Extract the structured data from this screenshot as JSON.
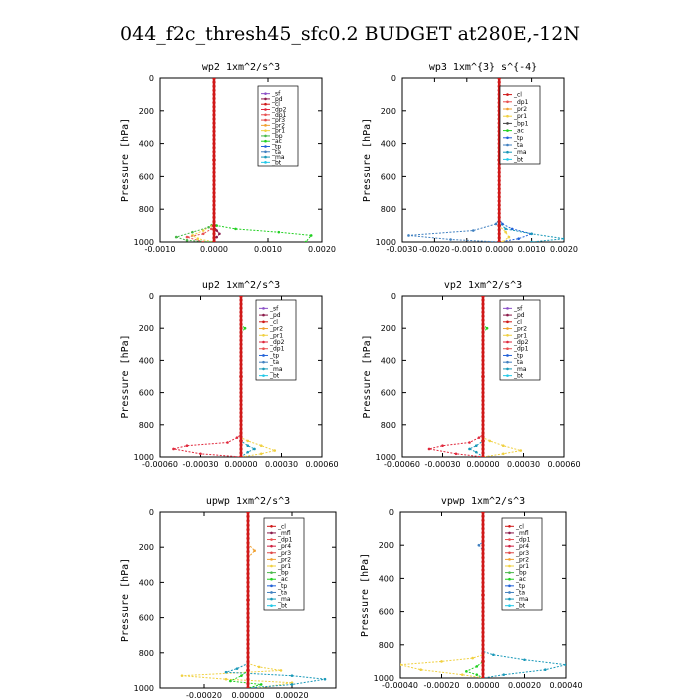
{
  "title": "044_f2c_thresh45_sfc0.2  BUDGET at280E,-12N",
  "colors": {
    "_sf": "#8a4fc7",
    "_pd": "#8b1a4a",
    "_cl": "#d01818",
    "_dp2": "#e0283c",
    "_dp1": "#e85050",
    "_mfl": "#8b1a4a",
    "_pr4": "#d02040",
    "_pr3": "#e04848",
    "_pr2": "#f0a030",
    "_pr1": "#f0d040",
    "_bp": "#48b848",
    "_ac": "#20d020",
    "_tp": "#2060d8",
    "_ta": "#4080c0",
    "_ma": "#1898b8",
    "_bt": "#20c8e8"
  },
  "chart_data": [
    {
      "type": "line",
      "title": "wp2  1xm^2/s^3",
      "ylabel": "Pressure [hPa]",
      "xlim": [
        -0.001,
        0.002
      ],
      "ylim": [
        1000,
        0
      ],
      "xticks": [
        "-0.0010",
        "0.0000",
        "0.0010",
        "0.0020"
      ],
      "xtick_values": [
        -0.001,
        0,
        0.001,
        0.002
      ],
      "yticks": [
        "0",
        "200",
        "400",
        "600",
        "800",
        "1000"
      ],
      "legend": [
        "_sf",
        "_pd",
        "_cl",
        "_dp2",
        "_dp1",
        "_pr3",
        "_pr2",
        "_pr1",
        "_bp",
        "_ac",
        "_tp",
        "_ta",
        "_ma",
        "_bt"
      ],
      "series": [
        {
          "key": "_ac",
          "x": [
            0,
            0,
            5e-05,
            0.0004,
            0.0012,
            0.0018,
            0.0017
          ],
          "y": [
            0,
            880,
            900,
            920,
            940,
            960,
            1000
          ]
        },
        {
          "key": "_pr1",
          "x": [
            0,
            0,
            -5e-05,
            -0.0002,
            -0.0004,
            -0.0003,
            0
          ],
          "y": [
            0,
            880,
            900,
            930,
            960,
            980,
            1000
          ]
        },
        {
          "key": "_bp",
          "x": [
            0,
            0,
            -0.0001,
            -0.0004,
            -0.0007,
            -0.0005,
            0
          ],
          "y": [
            0,
            880,
            910,
            940,
            970,
            990,
            1000
          ]
        },
        {
          "key": "_dp1",
          "x": [
            0,
            0,
            -5e-05,
            -0.0002,
            -0.0005,
            -0.0002
          ],
          "y": [
            0,
            880,
            920,
            950,
            970,
            1000
          ]
        },
        {
          "key": "_pd",
          "x": [
            0,
            0,
            5e-05,
            0.0001,
            5e-05,
            0
          ],
          "y": [
            0,
            900,
            930,
            950,
            970,
            1000
          ]
        },
        {
          "key": "_cl",
          "x": [
            0,
            0,
            0,
            0
          ],
          "y": [
            0,
            500,
            900,
            1000
          ]
        }
      ]
    },
    {
      "type": "line",
      "title": "wp3  1xm^{3} s^{-4}",
      "ylabel": "Pressure [hPa]",
      "xlim": [
        -0.003,
        0.002
      ],
      "ylim": [
        1000,
        0
      ],
      "xticks": [
        "-0.0030",
        "-0.0020",
        "-0.0010",
        "0.0000",
        "0.0010",
        "0.0020"
      ],
      "xtick_values": [
        -0.003,
        -0.002,
        -0.001,
        0,
        0.001,
        0.002
      ],
      "yticks": [
        "0",
        "200",
        "400",
        "600",
        "800",
        "1000"
      ],
      "legend": [
        "_cl",
        "_dp1",
        "_pr2",
        "_pr1",
        "_bp1",
        "_ac",
        "_tp",
        "_ta",
        "_ma",
        "_bt"
      ],
      "series": [
        {
          "key": "_tp",
          "x": [
            0,
            0,
            0.0001,
            0.0004,
            0.001,
            0.0006,
            0
          ],
          "y": [
            0,
            860,
            890,
            920,
            950,
            980,
            1000
          ]
        },
        {
          "key": "_ta",
          "x": [
            0,
            0,
            -0.0001,
            -0.0008,
            -0.0028,
            -0.0015,
            0
          ],
          "y": [
            0,
            860,
            890,
            930,
            960,
            985,
            1000
          ]
        },
        {
          "key": "_ma",
          "x": [
            0,
            0,
            0.0002,
            0.001,
            0.002,
            0.001
          ],
          "y": [
            0,
            880,
            920,
            950,
            980,
            1000
          ]
        },
        {
          "key": "_pr1",
          "x": [
            0,
            0,
            0.0002,
            0.0003,
            0.0001
          ],
          "y": [
            0,
            900,
            940,
            970,
            1000
          ]
        },
        {
          "key": "_cl",
          "x": [
            0,
            0,
            0,
            0
          ],
          "y": [
            0,
            500,
            900,
            1000
          ]
        }
      ]
    },
    {
      "type": "line",
      "title": "up2  1xm^2/s^3",
      "ylabel": "Pressure [hPa]",
      "xlim": [
        -0.0006,
        0.0006
      ],
      "ylim": [
        1000,
        0
      ],
      "xticks": [
        "-0.00060",
        "-0.00030",
        "0.00000",
        "0.00030",
        "0.00060"
      ],
      "xtick_values": [
        -0.0006,
        -0.0003,
        0,
        0.0003,
        0.0006
      ],
      "yticks": [
        "0",
        "200",
        "400",
        "600",
        "800",
        "1000"
      ],
      "legend": [
        "_sf",
        "_pd",
        "_cl",
        "_pr2",
        "_pr1",
        "_dp2",
        "_dp1",
        "_tp",
        "_ta",
        "_ma",
        "_bt"
      ],
      "series": [
        {
          "key": "_dp2",
          "x": [
            0,
            0,
            -3e-05,
            -0.0001,
            -0.0004,
            -0.0005,
            -0.0003,
            0
          ],
          "y": [
            0,
            860,
            880,
            910,
            930,
            950,
            980,
            1000
          ]
        },
        {
          "key": "_pr1",
          "x": [
            0,
            0,
            5e-05,
            0.00015,
            0.00025,
            0.00015,
            0
          ],
          "y": [
            0,
            880,
            900,
            930,
            960,
            980,
            1000
          ]
        },
        {
          "key": "_ma",
          "x": [
            0,
            0,
            5e-05,
            0.0001,
            5e-05,
            0
          ],
          "y": [
            0,
            900,
            930,
            950,
            970,
            1000
          ]
        },
        {
          "key": "_ac",
          "x": [
            0,
            0,
            3e-05,
            0,
            0
          ],
          "y": [
            0,
            180,
            200,
            230,
            1000
          ]
        },
        {
          "key": "_cl",
          "x": [
            0,
            0,
            0,
            0
          ],
          "y": [
            0,
            500,
            900,
            1000
          ]
        }
      ]
    },
    {
      "type": "line",
      "title": "vp2  1xm^2/s^3",
      "ylabel": "Pressure [hPa]",
      "xlim": [
        -0.0006,
        0.0006
      ],
      "ylim": [
        1000,
        0
      ],
      "xticks": [
        "-0.00060",
        "-0.00030",
        "0.00000",
        "0.00030",
        "0.00060"
      ],
      "xtick_values": [
        -0.0006,
        -0.0003,
        0,
        0.0003,
        0.0006
      ],
      "yticks": [
        "0",
        "200",
        "400",
        "600",
        "800",
        "1000"
      ],
      "legend": [
        "_sf",
        "_pd",
        "_cl",
        "_pr2",
        "_pr1",
        "_dp2",
        "_dp1",
        "_tp",
        "_ta",
        "_ma",
        "_bt"
      ],
      "series": [
        {
          "key": "_dp2",
          "x": [
            0,
            0,
            -3e-05,
            -0.0001,
            -0.0003,
            -0.0004,
            -0.0002,
            0
          ],
          "y": [
            0,
            860,
            880,
            910,
            930,
            950,
            980,
            1000
          ]
        },
        {
          "key": "_pr1",
          "x": [
            0,
            0,
            5e-05,
            0.00015,
            0.00028,
            0.00015,
            0
          ],
          "y": [
            0,
            880,
            900,
            930,
            960,
            980,
            1000
          ]
        },
        {
          "key": "_ma",
          "x": [
            0,
            0,
            -5e-05,
            -0.0001,
            -5e-05,
            0
          ],
          "y": [
            0,
            900,
            930,
            950,
            970,
            1000
          ]
        },
        {
          "key": "_ac",
          "x": [
            0,
            0,
            3e-05,
            0,
            0
          ],
          "y": [
            0,
            180,
            200,
            230,
            1000
          ]
        },
        {
          "key": "_cl",
          "x": [
            0,
            0,
            0,
            0
          ],
          "y": [
            0,
            500,
            900,
            1000
          ]
        }
      ]
    },
    {
      "type": "line",
      "title": "upwp  1xm^2/s^3",
      "ylabel": "Pressure [hPa]",
      "xlim": [
        -0.0004,
        0.0004
      ],
      "ylim": [
        1000,
        0
      ],
      "xticks": [
        "-0.00020",
        "0.00000",
        "0.00020"
      ],
      "xtick_values": [
        -0.0002,
        0,
        0.0002
      ],
      "yticks": [
        "0",
        "200",
        "400",
        "600",
        "800",
        "1000"
      ],
      "legend": [
        "_cl",
        "_mfl",
        "_dp1",
        "_pr4",
        "_pr3",
        "_pr2",
        "_pr1",
        "_bp",
        "_ac",
        "_tp",
        "_ta",
        "_ma",
        "_bt"
      ],
      "series": [
        {
          "key": "_pr1",
          "x": [
            0,
            0,
            5e-05,
            0.00015,
            -0.0003,
            -0.0001,
            0.0002,
            5e-05
          ],
          "y": [
            0,
            860,
            880,
            900,
            930,
            950,
            970,
            1000
          ]
        },
        {
          "key": "_ma",
          "x": [
            0,
            0,
            -5e-05,
            -0.0001,
            0.0002,
            0.00035,
            0.0002,
            0
          ],
          "y": [
            0,
            860,
            890,
            910,
            930,
            950,
            980,
            1000
          ]
        },
        {
          "key": "_ac",
          "x": [
            0,
            0,
            -3e-05,
            -8e-05,
            6e-05,
            0
          ],
          "y": [
            0,
            900,
            930,
            960,
            980,
            1000
          ]
        },
        {
          "key": "_pr2",
          "x": [
            0,
            0,
            3e-05,
            0,
            0
          ],
          "y": [
            0,
            180,
            220,
            260,
            1000
          ]
        },
        {
          "key": "_cl",
          "x": [
            0,
            0,
            0,
            0
          ],
          "y": [
            0,
            500,
            900,
            1000
          ]
        }
      ]
    },
    {
      "type": "line",
      "title": "vpwp  1xm^2/s^3",
      "ylabel": "Pressure [hPa]",
      "xlim": [
        -0.0004,
        0.0004
      ],
      "ylim": [
        1000,
        0
      ],
      "xticks": [
        "-0.00040",
        "-0.00020",
        "0.00000",
        "0.00020",
        "0.00040"
      ],
      "xtick_values": [
        -0.0004,
        -0.0002,
        0,
        0.0002,
        0.0004
      ],
      "yticks": [
        "0",
        "200",
        "400",
        "600",
        "800",
        "1000"
      ],
      "legend": [
        "_cl",
        "_mfl",
        "_dp1",
        "_pr4",
        "_pr3",
        "_pr2",
        "_pr1",
        "_bp",
        "_ac",
        "_tp",
        "_ta",
        "_ma",
        "_bt"
      ],
      "series": [
        {
          "key": "_ma",
          "x": [
            0,
            0,
            5e-05,
            0.0002,
            0.0004,
            0.0003,
            0.0001,
            0
          ],
          "y": [
            0,
            840,
            860,
            890,
            920,
            950,
            980,
            1000
          ]
        },
        {
          "key": "_pr1",
          "x": [
            0,
            0,
            -5e-05,
            -0.0002,
            -0.0004,
            -0.0003,
            -0.0001,
            0
          ],
          "y": [
            0,
            860,
            880,
            900,
            920,
            950,
            980,
            1000
          ]
        },
        {
          "key": "_ac",
          "x": [
            0,
            0,
            -3e-05,
            -8e-05,
            -3e-05,
            0
          ],
          "y": [
            0,
            900,
            930,
            960,
            980,
            1000
          ]
        },
        {
          "key": "_ta",
          "x": [
            0,
            0,
            -2e-05,
            0,
            0
          ],
          "y": [
            0,
            180,
            200,
            230,
            1000
          ]
        },
        {
          "key": "_cl",
          "x": [
            0,
            0,
            0,
            0
          ],
          "y": [
            0,
            500,
            900,
            1000
          ]
        }
      ]
    }
  ]
}
